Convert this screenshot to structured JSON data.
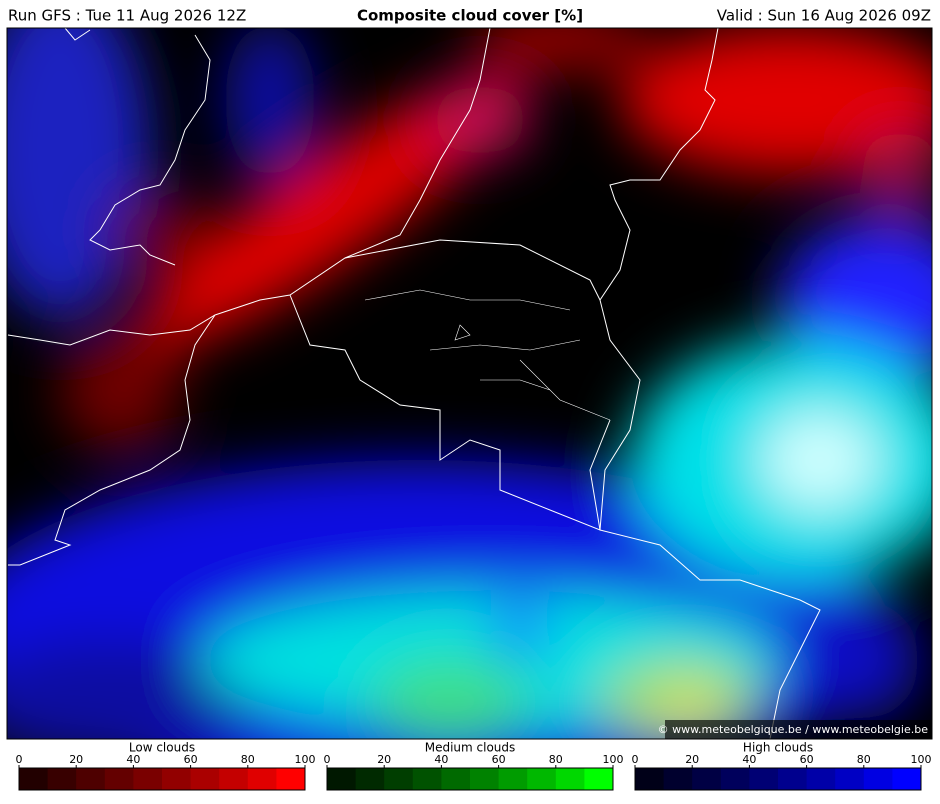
{
  "header": {
    "run": "Run GFS : Tue 11 Aug 2026 12Z",
    "title": "Composite cloud cover [%]",
    "valid": "Valid : Sun 16 Aug 2026 09Z"
  },
  "credit": "© www.meteobelgique.be / www.meteobelgie.be",
  "legends": [
    {
      "title": "Low clouds",
      "ticks": [
        0,
        20,
        40,
        60,
        80,
        100
      ],
      "colors": [
        "#220000",
        "#380000",
        "#4e0000",
        "#640000",
        "#7a0000",
        "#920000",
        "#aa0000",
        "#c40000",
        "#e00000",
        "#ff0000"
      ]
    },
    {
      "title": "Medium clouds",
      "ticks": [
        0,
        20,
        40,
        60,
        80,
        100
      ],
      "colors": [
        "#001800",
        "#002a00",
        "#003e00",
        "#005200",
        "#006a00",
        "#008200",
        "#009c00",
        "#00b800",
        "#00d800",
        "#00ff00"
      ]
    },
    {
      "title": "High clouds",
      "ticks": [
        0,
        20,
        40,
        60,
        80,
        100
      ],
      "colors": [
        "#000018",
        "#00002e",
        "#000044",
        "#00005c",
        "#000074",
        "#00008e",
        "#0000a8",
        "#0000c4",
        "#0000e2",
        "#0000ff"
      ]
    }
  ]
}
